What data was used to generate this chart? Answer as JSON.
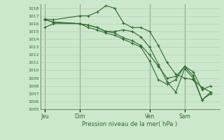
{
  "bg_color": "#cce8cc",
  "grid_color": "#b0c8b0",
  "line_color": "#2d6a2d",
  "marker_color": "#2d6a2d",
  "xlabel_text": "Pression niveau de la mer( hPa )",
  "ylim": [
    1005,
    1018.5
  ],
  "yticks": [
    1005,
    1006,
    1007,
    1008,
    1009,
    1010,
    1011,
    1012,
    1013,
    1014,
    1015,
    1016,
    1017,
    1018
  ],
  "xtick_labels": [
    "Jeu",
    "Dim",
    "Ven",
    "Sam"
  ],
  "xtick_positions": [
    0,
    8,
    24,
    32
  ],
  "xlim": [
    -1,
    40
  ],
  "vlines": [
    0,
    8,
    24,
    32
  ],
  "series": [
    {
      "x": [
        0,
        2,
        8,
        10,
        12,
        14,
        16,
        18,
        20,
        22,
        24,
        26,
        28,
        30,
        32,
        34,
        36,
        38
      ],
      "y": [
        1016.6,
        1016.5,
        1017.0,
        1017.0,
        1017.5,
        1018.3,
        1018.0,
        1016.1,
        1015.5,
        1015.5,
        1015.0,
        1013.2,
        1011.0,
        1009.5,
        1009.0,
        1008.8,
        1007.8,
        1007.2
      ]
    },
    {
      "x": [
        0,
        2,
        8,
        10,
        12,
        14,
        16,
        18,
        20,
        22,
        24,
        26,
        28,
        30,
        32,
        34,
        36,
        38
      ],
      "y": [
        1015.5,
        1016.0,
        1016.0,
        1015.8,
        1015.5,
        1015.0,
        1015.0,
        1015.2,
        1015.0,
        1014.3,
        1013.0,
        1010.8,
        1008.5,
        1007.2,
        1010.2,
        1009.0,
        1006.2,
        1007.2
      ]
    },
    {
      "x": [
        0,
        2,
        8,
        10,
        12,
        14,
        16,
        18,
        20,
        22,
        24,
        26,
        28,
        30,
        32,
        34,
        36,
        38
      ],
      "y": [
        1016.5,
        1016.2,
        1016.0,
        1015.5,
        1015.2,
        1014.8,
        1014.5,
        1014.0,
        1013.5,
        1013.0,
        1011.2,
        1008.8,
        1008.2,
        1008.8,
        1010.5,
        1009.3,
        1006.2,
        1007.0
      ]
    },
    {
      "x": [
        0,
        2,
        8,
        10,
        12,
        14,
        16,
        18,
        20,
        22,
        24,
        26,
        28,
        30,
        32,
        34,
        36,
        38
      ],
      "y": [
        1016.5,
        1016.2,
        1016.0,
        1015.8,
        1015.5,
        1015.0,
        1014.8,
        1014.2,
        1013.8,
        1013.2,
        1012.0,
        1010.5,
        1009.0,
        1009.2,
        1010.5,
        1009.8,
        1007.5,
        1008.0
      ]
    }
  ]
}
